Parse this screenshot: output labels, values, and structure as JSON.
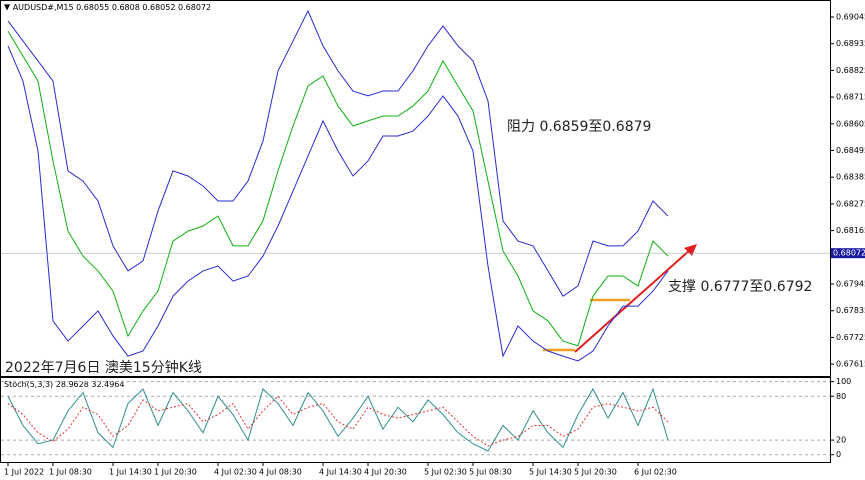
{
  "chart_data": [
    {
      "type": "line",
      "title": "AUDUSD#,M15",
      "ohlc": [
        0.68055,
        0.6808,
        0.68052,
        0.68072
      ],
      "annotations": [
        "阻力 0.6859至0.6879",
        "支撑 0.6777至0.6792",
        "2022年7月6日 澳美15分钟K线"
      ],
      "categories": [
        "1 Jul 2022",
        null,
        null,
        "1 Jul 08:30",
        null,
        null,
        null,
        "1 Jul 14:30",
        null,
        null,
        "1 Jul 20:30",
        null,
        null,
        null,
        "4 Jul 02:30",
        null,
        null,
        "4 Jul 08:30",
        null,
        null,
        null,
        "4 Jul 14:30",
        null,
        null,
        "4 Jul 20:30",
        null,
        null,
        null,
        "5 Jul 02:30",
        null,
        null,
        "5 Jul 08:30",
        null,
        null,
        null,
        "5 Jul 14:30",
        null,
        null,
        "5 Jul 20:30",
        null,
        null,
        null,
        "6 Jul 02:30",
        null,
        null
      ],
      "series": [
        {
          "color": "#10b010",
          "values": [
            0.68987,
            0.68884,
            0.68781,
            0.68452,
            0.68163,
            0.6806,
            0.67999,
            0.67916,
            0.67731,
            0.67834,
            0.67916,
            0.68122,
            0.68163,
            0.68184,
            0.68225,
            0.68102,
            0.68102,
            0.68205,
            0.68411,
            0.68596,
            0.68761,
            0.68802,
            0.68678,
            0.68596,
            0.68617,
            0.68637,
            0.68637,
            0.68678,
            0.6874,
            0.68864,
            0.68761,
            0.68658,
            0.68369,
            0.68081,
            0.67978,
            0.67834,
            0.67793,
            0.6771,
            0.6769,
            0.67895,
            0.67978,
            0.67978,
            0.67937,
            0.68122,
            0.6806
          ]
        },
        {
          "color": "#2a2ad0",
          "values": [
            0.69029,
            0.68946,
            0.68864,
            0.68781,
            0.68411,
            0.68369,
            0.68287,
            0.68102,
            0.67999,
            0.6804,
            0.68246,
            0.68411,
            0.6839,
            0.68349,
            0.68287,
            0.68287,
            0.68369,
            0.68534,
            0.68823,
            0.68946,
            0.6907,
            0.68926,
            0.68823,
            0.6874,
            0.6872,
            0.6874,
            0.6874,
            0.68823,
            0.68926,
            0.69008,
            0.68926,
            0.68864,
            0.68699,
            0.68205,
            0.68122,
            0.68102,
            0.67999,
            0.67895,
            0.67937,
            0.68122,
            0.68102,
            0.68102,
            0.68163,
            0.68287,
            0.68225
          ]
        },
        {
          "color": "#2a2ad0",
          "values": [
            0.68926,
            0.68781,
            0.68493,
            0.67793,
            0.6771,
            0.67772,
            0.67834,
            0.67731,
            0.67648,
            0.67669,
            0.67772,
            0.67895,
            0.67957,
            0.67999,
            0.68019,
            0.67957,
            0.67978,
            0.6806,
            0.68184,
            0.68328,
            0.68472,
            0.68617,
            0.68493,
            0.6839,
            0.68452,
            0.68555,
            0.68555,
            0.68575,
            0.68637,
            0.6872,
            0.68637,
            0.68493,
            0.68019,
            0.67648,
            0.67772,
            0.6771,
            0.67669,
            0.67648,
            0.67628,
            0.67669,
            0.67772,
            0.67854,
            0.67854,
            0.67916,
            0.67999
          ]
        }
      ],
      "ylim": [
        0.67566,
        0.69111
      ],
      "yticks": [
        0.69045,
        0.68935,
        0.68825,
        0.68715,
        0.68605,
        0.68495,
        0.68385,
        0.68275,
        0.68165,
        0.67945,
        0.67835,
        0.67725,
        0.67615
      ]
    },
    {
      "type": "line",
      "title": "Stoch(5,3,3)",
      "header_values": [
        28.9628,
        32.4964
      ],
      "series": [
        {
          "color": "#2f8f8f",
          "values": [
            80,
            40,
            15,
            20,
            60,
            85,
            30,
            10,
            70,
            90,
            40,
            85,
            60,
            30,
            80,
            55,
            20,
            90,
            70,
            40,
            85,
            60,
            25,
            50,
            80,
            35,
            65,
            45,
            75,
            55,
            30,
            15,
            5,
            40,
            20,
            60,
            30,
            10,
            55,
            90,
            50,
            85,
            40,
            90,
            20
          ]
        },
        {
          "color": "#e03030",
          "dashed": true,
          "values": [
            70,
            55,
            30,
            18,
            35,
            65,
            55,
            25,
            40,
            75,
            60,
            65,
            70,
            45,
            55,
            70,
            35,
            60,
            80,
            55,
            65,
            70,
            45,
            35,
            65,
            55,
            50,
            55,
            60,
            65,
            45,
            25,
            12,
            20,
            25,
            40,
            40,
            25,
            35,
            65,
            70,
            65,
            60,
            65,
            45
          ]
        }
      ],
      "ylim": [
        -10,
        105
      ],
      "yticks": [
        0,
        20,
        80,
        100
      ]
    }
  ]
}
